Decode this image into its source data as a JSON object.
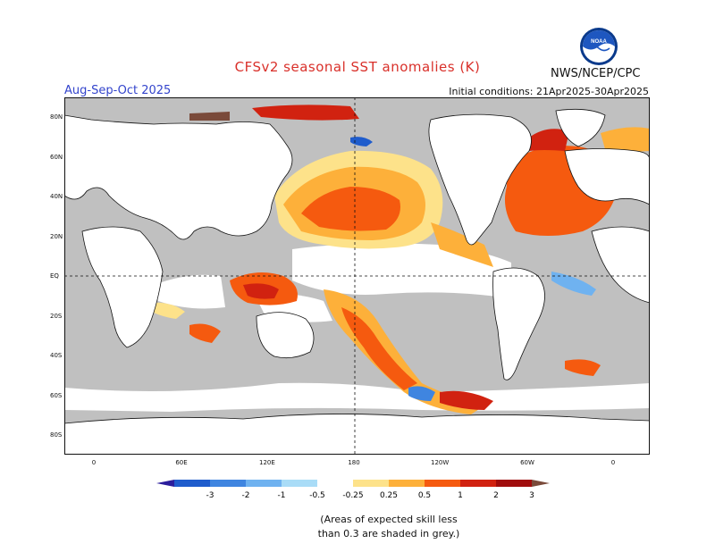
{
  "title": "CFSv2 seasonal SST anomalies (K)",
  "period": "Aug-Sep-Oct 2025",
  "initial_conditions": "Initial conditions: 21Apr2025-30Apr2025",
  "agency": "NWS/NCEP/CPC",
  "logo_text": "NOAA",
  "lat_labels": [
    "80N",
    "60N",
    "40N",
    "20N",
    "EQ",
    "20S",
    "40S",
    "60S",
    "80S"
  ],
  "lon_labels": [
    "0",
    "60E",
    "120E",
    "180",
    "120W",
    "60W",
    "0"
  ],
  "colorbar": {
    "labels": [
      "-3",
      "-2",
      "-1",
      "-0.5",
      "-0.25",
      "0.25",
      "0.5",
      "1",
      "2",
      "3"
    ],
    "colors": [
      "#2b1d9c",
      "#1f5ccc",
      "#3f85e0",
      "#6fb2f0",
      "#a9dcf7",
      "#ffffff",
      "#fde28a",
      "#fdb03a",
      "#f55a0f",
      "#d12210",
      "#a00c0c",
      "#7a4a3a"
    ]
  },
  "note": {
    "line1": "(Areas of expected skill less",
    "line2": "than 0.3 are shaded in grey.)"
  },
  "colors": {
    "skill_grey": "#c0c0c0",
    "land": "#ffffff",
    "title": "#d9302a",
    "period": "#3344cc"
  }
}
